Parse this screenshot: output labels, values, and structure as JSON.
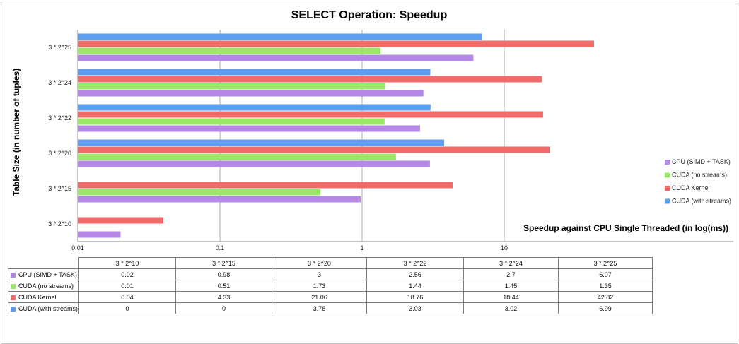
{
  "chart_data": {
    "type": "bar",
    "orientation": "horizontal",
    "title": "SELECT Operation: Speedup",
    "xlabel": "Speedup against CPU Single Threaded (in log(ms))",
    "ylabel": "Table Size (in number of tuples)",
    "x_scale": "log",
    "xlim": [
      0.01,
      100
    ],
    "x_ticks": [
      "0.01",
      "0.1",
      "1",
      "10"
    ],
    "grid": "vertical major gridlines",
    "legend_position": "right",
    "categories": [
      "3 * 2^10",
      "3 * 2^15",
      "3 * 2^20",
      "3 * 2^22",
      "3 * 2^24",
      "3 * 2^25"
    ],
    "series": [
      {
        "name": "CPU (SIMD + TASK)",
        "color": "#b588e6",
        "values": [
          0.02,
          0.98,
          3,
          2.56,
          2.7,
          6.07
        ]
      },
      {
        "name": "CUDA (no streams)",
        "color": "#9be868",
        "values": [
          0.01,
          0.51,
          1.73,
          1.44,
          1.45,
          1.35
        ]
      },
      {
        "name": "CUDA Kernel",
        "color": "#f26b6b",
        "values": [
          0.04,
          4.33,
          21.06,
          18.76,
          18.44,
          42.82
        ]
      },
      {
        "name": "CUDA (with streams)",
        "color": "#5e9ef0",
        "values": [
          0,
          0,
          3.78,
          3.03,
          3.02,
          6.99
        ]
      }
    ],
    "table": {
      "columns": [
        "3 * 2^10",
        "3 * 2^15",
        "3 * 2^20",
        "3 * 2^22",
        "3 * 2^24",
        "3 * 2^25"
      ],
      "rows": [
        {
          "label": "CPU (SIMD + TASK)",
          "cells": [
            "0.02",
            "0.98",
            "3",
            "2.56",
            "2.7",
            "6.07"
          ]
        },
        {
          "label": "CUDA (no streams)",
          "cells": [
            "0.01",
            "0.51",
            "1.73",
            "1.44",
            "1.45",
            "1.35"
          ]
        },
        {
          "label": "CUDA Kernel",
          "cells": [
            "0.04",
            "4.33",
            "21.06",
            "18.76",
            "18.44",
            "42.82"
          ]
        },
        {
          "label": "CUDA (with streams)",
          "cells": [
            "0",
            "0",
            "3.78",
            "3.03",
            "3.02",
            "6.99"
          ]
        }
      ]
    }
  }
}
